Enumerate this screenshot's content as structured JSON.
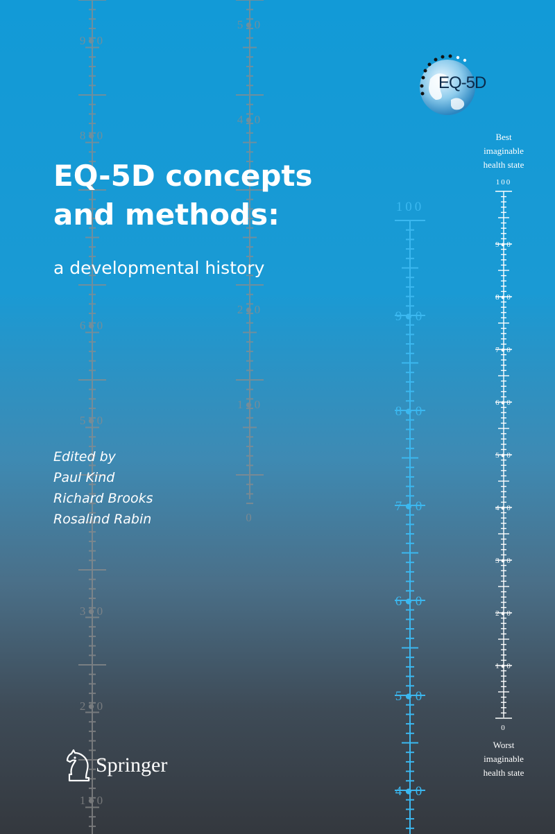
{
  "cover": {
    "title_line1": "EQ-5D concepts",
    "title_line2": "and methods:",
    "subtitle": "a developmental history",
    "edited_by": "Edited by",
    "editors": [
      "Paul Kind",
      "Richard Brooks",
      "Rosalind Rabin"
    ],
    "logo_text": "EQ-5D",
    "publisher": "Springer",
    "scale": {
      "top_label": [
        "Best",
        "imaginable",
        "health state"
      ],
      "bottom_label": [
        "Worst",
        "imaginable",
        "health state"
      ],
      "top_value": "100",
      "bottom_value": "0",
      "tick_values": [
        "9●0",
        "8●0",
        "7●0",
        "6●0",
        "5●0",
        "4●0",
        "3●0",
        "2●0",
        "1●0"
      ]
    },
    "background_scales": {
      "left_scale_numbers": [
        "9●0",
        "8●0",
        "6●0",
        "5●0",
        "3●0",
        "2●0",
        "1●0"
      ],
      "middle_scale_numbers": [
        "5●0",
        "4●0",
        "2●0",
        "1●0",
        "0"
      ],
      "right_scale_numbers": [
        "100",
        "9●0",
        "8●0",
        "7●0",
        "6●0",
        "5●0",
        "4●0"
      ]
    },
    "colors": {
      "background_top": "#129ad7",
      "background_bottom": "#34383e",
      "grey_scale": "#8a8a8a",
      "blue_scale": "#35b6ee",
      "text": "#ffffff"
    }
  }
}
